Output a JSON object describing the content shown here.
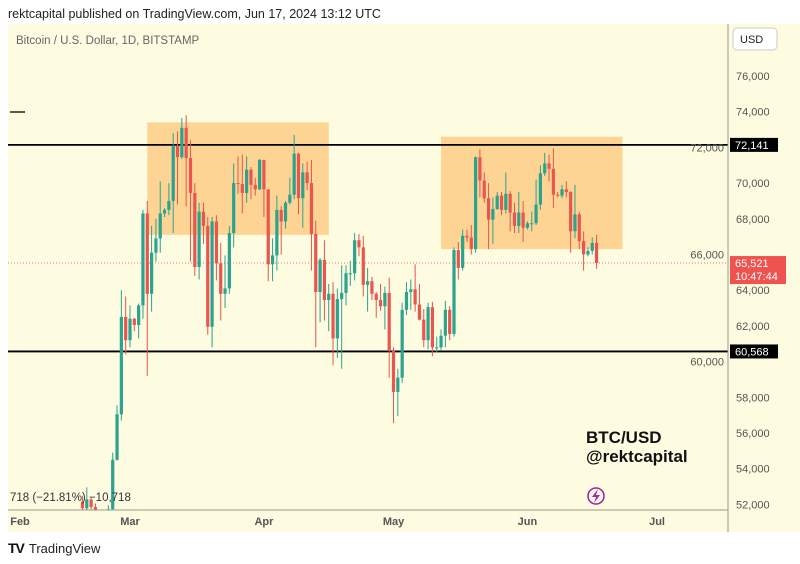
{
  "header": {
    "published": "rektcapital published on TradingView.com, Jun 17, 2024 13:12 UTC"
  },
  "chart_title": "Bitcoin / U.S. Dollar, 1D, BITSTAMP",
  "currency_button": "USD",
  "watermark": {
    "line1": "BTC/USD",
    "line2": "@rektcapital"
  },
  "footer": {
    "logo_text": "TradingView"
  },
  "colors": {
    "background": "#fdfbe0",
    "up": "#2aa38f",
    "down": "#e8564f",
    "zone": "#fcc77a",
    "level_line": "#000000",
    "price_tag": "#ef5350"
  },
  "icons": {
    "lightning": "lightning-icon",
    "logo": "tradingview-logo"
  },
  "chart_data": {
    "type": "candlestick",
    "title": "Bitcoin / U.S. Dollar, 1D, BITSTAMP",
    "ylim": [
      51700,
      77200
    ],
    "y_ticks": [
      "52,000",
      "54,000",
      "56,000",
      "58,000",
      "60,000",
      "62,000",
      "64,000",
      "66,000",
      "68,000",
      "70,000",
      "72,000",
      "74,000",
      "76,000"
    ],
    "y_tick_values": [
      52000,
      54000,
      56000,
      58000,
      60000,
      62000,
      64000,
      66000,
      68000,
      70000,
      72000,
      74000,
      76000
    ],
    "x_ticks": [
      {
        "label": "Feb",
        "date": "2024-02-01"
      },
      {
        "label": "Mar",
        "date": "2024-03-01"
      },
      {
        "label": "Apr",
        "date": "2024-04-01"
      },
      {
        "label": "May",
        "date": "2024-05-01"
      },
      {
        "label": "Jun",
        "date": "2024-06-01"
      },
      {
        "label": "Jul",
        "date": "2024-07-01"
      }
    ],
    "horizontal_levels": [
      {
        "value": 72141,
        "label": "72,141"
      },
      {
        "value": 60568,
        "label": "60,568"
      }
    ],
    "last_price": {
      "value": 65521,
      "label": "65,521",
      "countdown": "10:47:44"
    },
    "zones": [
      {
        "from": "2024-03-05",
        "to": "2024-04-16",
        "high": 73400,
        "low": 67100
      },
      {
        "from": "2024-05-12",
        "to": "2024-06-23",
        "high": 72600,
        "low": 66300
      }
    ],
    "legend_change_text": "718 (−21.81%) −10,718",
    "candles": [
      [
        "2024-02-19",
        52140,
        52480,
        51700,
        51780
      ],
      [
        "2024-02-20",
        51780,
        52950,
        50800,
        52280
      ],
      [
        "2024-02-21",
        52280,
        52370,
        50650,
        51850
      ],
      [
        "2024-02-22",
        51850,
        52050,
        50950,
        51300
      ],
      [
        "2024-02-23",
        51300,
        51550,
        50550,
        50750
      ],
      [
        "2024-02-24",
        50750,
        51700,
        50600,
        51580
      ],
      [
        "2024-02-25",
        51580,
        51950,
        51300,
        51730
      ],
      [
        "2024-02-26",
        51730,
        54900,
        50900,
        54500
      ],
      [
        "2024-02-27",
        54500,
        57550,
        54450,
        57050
      ],
      [
        "2024-02-28",
        57050,
        64000,
        56700,
        62500
      ],
      [
        "2024-02-29",
        62500,
        63650,
        60400,
        61200
      ],
      [
        "2024-03-01",
        61200,
        63150,
        60800,
        62400
      ],
      [
        "2024-03-02",
        62400,
        62450,
        61700,
        62050
      ],
      [
        "2024-03-03",
        62050,
        63250,
        61300,
        63150
      ],
      [
        "2024-03-04",
        63150,
        68500,
        62400,
        68300
      ],
      [
        "2024-03-05",
        68300,
        69000,
        59200,
        63800
      ],
      [
        "2024-03-06",
        63800,
        67600,
        62800,
        66100
      ],
      [
        "2024-03-07",
        66100,
        68000,
        65600,
        66900
      ],
      [
        "2024-03-08",
        66900,
        70100,
        66100,
        68300
      ],
      [
        "2024-03-09",
        68300,
        68600,
        68100,
        68500
      ],
      [
        "2024-03-10",
        68500,
        70000,
        68200,
        69000
      ],
      [
        "2024-03-11",
        69000,
        72800,
        67200,
        72100
      ],
      [
        "2024-03-12",
        72100,
        72900,
        68800,
        71450
      ],
      [
        "2024-03-13",
        71450,
        73650,
        71350,
        73100
      ],
      [
        "2024-03-14",
        73100,
        73800,
        68700,
        71400
      ],
      [
        "2024-03-15",
        71400,
        72400,
        65600,
        69450
      ],
      [
        "2024-03-16",
        69450,
        70000,
        64800,
        65300
      ],
      [
        "2024-03-17",
        65300,
        68900,
        64600,
        68400
      ],
      [
        "2024-03-18",
        68400,
        68900,
        66600,
        67600
      ],
      [
        "2024-03-19",
        67600,
        68100,
        61500,
        61950
      ],
      [
        "2024-03-20",
        61950,
        68100,
        60800,
        67850
      ],
      [
        "2024-03-21",
        67850,
        68200,
        64550,
        65500
      ],
      [
        "2024-03-22",
        65500,
        66650,
        62300,
        63800
      ],
      [
        "2024-03-23",
        63800,
        65950,
        63000,
        64100
      ],
      [
        "2024-03-24",
        64100,
        67600,
        63800,
        67200
      ],
      [
        "2024-03-25",
        67200,
        71100,
        66400,
        70000
      ],
      [
        "2024-03-26",
        70000,
        71500,
        69400,
        69950
      ],
      [
        "2024-03-27",
        69950,
        71600,
        68300,
        69450
      ],
      [
        "2024-03-28",
        69450,
        71500,
        68900,
        70750
      ],
      [
        "2024-03-29",
        70750,
        70900,
        69100,
        69900
      ],
      [
        "2024-03-30",
        69900,
        70300,
        69300,
        69650
      ],
      [
        "2024-03-31",
        69650,
        71350,
        69600,
        71300
      ],
      [
        "2024-04-01",
        71300,
        71300,
        68100,
        69650
      ],
      [
        "2024-04-02",
        69650,
        69650,
        64500,
        65450
      ],
      [
        "2024-04-03",
        65450,
        66900,
        64500,
        65950
      ],
      [
        "2024-04-04",
        65950,
        69300,
        65100,
        68500
      ],
      [
        "2024-04-05",
        68500,
        68700,
        66000,
        67850
      ],
      [
        "2024-04-06",
        67850,
        69000,
        67450,
        68900
      ],
      [
        "2024-04-07",
        68900,
        70300,
        68800,
        69350
      ],
      [
        "2024-04-08",
        69350,
        72700,
        69100,
        71650
      ],
      [
        "2024-04-09",
        71650,
        71700,
        68250,
        69150
      ],
      [
        "2024-04-10",
        69150,
        71100,
        67500,
        70600
      ],
      [
        "2024-04-11",
        70600,
        71200,
        69600,
        70000
      ],
      [
        "2024-04-12",
        70000,
        71300,
        65100,
        67150
      ],
      [
        "2024-04-13",
        67150,
        67900,
        60800,
        63900
      ],
      [
        "2024-04-14",
        63900,
        65800,
        62200,
        65700
      ],
      [
        "2024-04-15",
        65700,
        66800,
        62300,
        63450
      ],
      [
        "2024-04-16",
        63450,
        64350,
        61700,
        63800
      ],
      [
        "2024-04-17",
        63800,
        64450,
        59800,
        61300
      ],
      [
        "2024-04-18",
        61300,
        64100,
        60200,
        63500
      ],
      [
        "2024-04-19",
        63500,
        65400,
        59600,
        63850
      ],
      [
        "2024-04-20",
        63850,
        65400,
        63150,
        64950
      ],
      [
        "2024-04-21",
        64950,
        65650,
        64250,
        64950
      ],
      [
        "2024-04-22",
        64950,
        67200,
        64550,
        66800
      ],
      [
        "2024-04-23",
        66800,
        67150,
        65900,
        66400
      ],
      [
        "2024-04-24",
        66400,
        67050,
        63650,
        64300
      ],
      [
        "2024-04-25",
        64300,
        65250,
        62800,
        64500
      ],
      [
        "2024-04-26",
        64500,
        64750,
        63450,
        63800
      ],
      [
        "2024-04-27",
        63800,
        63900,
        62450,
        63450
      ],
      [
        "2024-04-28",
        63450,
        64350,
        62850,
        63100
      ],
      [
        "2024-04-29",
        63100,
        64200,
        61800,
        63850
      ],
      [
        "2024-04-30",
        63850,
        64700,
        59100,
        60650
      ],
      [
        "2024-05-01",
        60650,
        60800,
        56550,
        58300
      ],
      [
        "2024-05-02",
        58300,
        59600,
        56950,
        59100
      ],
      [
        "2024-05-03",
        59100,
        63300,
        58800,
        62900
      ],
      [
        "2024-05-04",
        62900,
        64450,
        62600,
        63900
      ],
      [
        "2024-05-05",
        63900,
        64600,
        62900,
        64050
      ],
      [
        "2024-05-06",
        64050,
        65450,
        62800,
        63200
      ],
      [
        "2024-05-07",
        63200,
        64350,
        62300,
        62350
      ],
      [
        "2024-05-08",
        62350,
        62950,
        60800,
        61200
      ],
      [
        "2024-05-09",
        61200,
        63300,
        60700,
        63050
      ],
      [
        "2024-05-10",
        63050,
        63350,
        60300,
        60800
      ],
      [
        "2024-05-11",
        60800,
        61400,
        60500,
        60800
      ],
      [
        "2024-05-12",
        60800,
        61800,
        60650,
        61450
      ],
      [
        "2024-05-13",
        61450,
        63400,
        60800,
        62900
      ],
      [
        "2024-05-14",
        62900,
        63100,
        61200,
        61550
      ],
      [
        "2024-05-15",
        61550,
        66400,
        61400,
        66250
      ],
      [
        "2024-05-16",
        66250,
        66700,
        64600,
        65250
      ],
      [
        "2024-05-17",
        65250,
        67400,
        65100,
        67050
      ],
      [
        "2024-05-18",
        67050,
        67400,
        66700,
        66950
      ],
      [
        "2024-05-19",
        66950,
        67650,
        66000,
        66300
      ],
      [
        "2024-05-20",
        66300,
        71500,
        66100,
        71450
      ],
      [
        "2024-05-21",
        71450,
        71900,
        69200,
        70150
      ],
      [
        "2024-05-22",
        70150,
        70600,
        68900,
        69150
      ],
      [
        "2024-05-23",
        69150,
        70000,
        66300,
        67950
      ],
      [
        "2024-05-24",
        67950,
        69200,
        66600,
        68550
      ],
      [
        "2024-05-25",
        68550,
        69500,
        68500,
        69300
      ],
      [
        "2024-05-26",
        69300,
        69500,
        68200,
        68500
      ],
      [
        "2024-05-27",
        68500,
        70600,
        68300,
        69400
      ],
      [
        "2024-05-28",
        69400,
        69550,
        67300,
        68350
      ],
      [
        "2024-05-29",
        68350,
        68900,
        67200,
        67600
      ],
      [
        "2024-05-30",
        67600,
        69500,
        67200,
        68350
      ],
      [
        "2024-05-31",
        68350,
        69000,
        66700,
        67500
      ],
      [
        "2024-06-01",
        67500,
        67850,
        67400,
        67750
      ],
      [
        "2024-06-02",
        67750,
        68400,
        67300,
        67750
      ],
      [
        "2024-06-03",
        67750,
        70200,
        67650,
        68800
      ],
      [
        "2024-06-04",
        68800,
        71000,
        68500,
        70550
      ],
      [
        "2024-06-05",
        70550,
        71700,
        70400,
        71100
      ],
      [
        "2024-06-06",
        71100,
        71600,
        70100,
        70800
      ],
      [
        "2024-06-07",
        70800,
        71950,
        68600,
        69350
      ],
      [
        "2024-06-08",
        69350,
        69500,
        69200,
        69300
      ],
      [
        "2024-06-09",
        69300,
        69900,
        69150,
        69650
      ],
      [
        "2024-06-10",
        69650,
        70100,
        69200,
        69500
      ],
      [
        "2024-06-11",
        69500,
        69550,
        66100,
        67300
      ],
      [
        "2024-06-12",
        67300,
        69900,
        66900,
        68250
      ],
      [
        "2024-06-13",
        68250,
        68400,
        66300,
        66750
      ],
      [
        "2024-06-14",
        66750,
        67300,
        65100,
        66000
      ],
      [
        "2024-06-15",
        66000,
        66400,
        65900,
        66200
      ],
      [
        "2024-06-16",
        66200,
        66950,
        66000,
        66650
      ],
      [
        "2024-06-17",
        66650,
        67100,
        65200,
        65521
      ]
    ]
  }
}
